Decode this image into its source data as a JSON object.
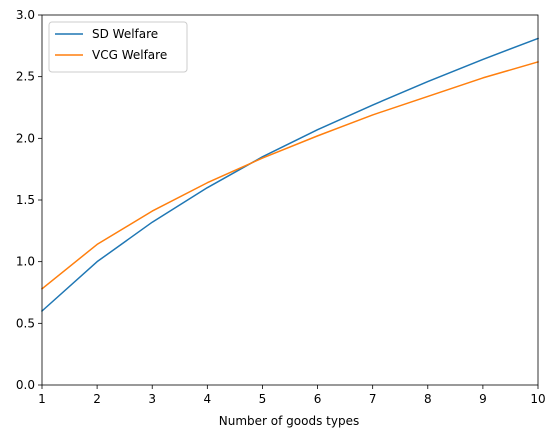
{
  "chart_data": {
    "type": "line",
    "title": "",
    "xlabel": "Number of goods types",
    "ylabel": "",
    "xlim": [
      1,
      10
    ],
    "ylim": [
      0,
      3.0
    ],
    "xticks": [
      1,
      2,
      3,
      4,
      5,
      6,
      7,
      8,
      9,
      10
    ],
    "yticks": [
      0.0,
      0.5,
      1.0,
      1.5,
      2.0,
      2.5,
      3.0
    ],
    "xtick_labels": [
      "1",
      "2",
      "3",
      "4",
      "5",
      "6",
      "7",
      "8",
      "9",
      "10"
    ],
    "ytick_labels": [
      "0.0",
      "0.5",
      "1.0",
      "1.5",
      "2.0",
      "2.5",
      "3.0"
    ],
    "grid": false,
    "legend": {
      "placement": "top-left"
    },
    "x": [
      1,
      2,
      3,
      4,
      5,
      6,
      7,
      8,
      9,
      10
    ],
    "series": [
      {
        "name": "SD Welfare",
        "color": "#1f77b4",
        "values": [
          0.6,
          1.0,
          1.32,
          1.6,
          1.85,
          2.07,
          2.27,
          2.46,
          2.64,
          2.81
        ]
      },
      {
        "name": "VCG Welfare",
        "color": "#ff7f0e",
        "values": [
          0.78,
          1.14,
          1.41,
          1.64,
          1.84,
          2.02,
          2.19,
          2.34,
          2.49,
          2.62
        ]
      }
    ]
  }
}
